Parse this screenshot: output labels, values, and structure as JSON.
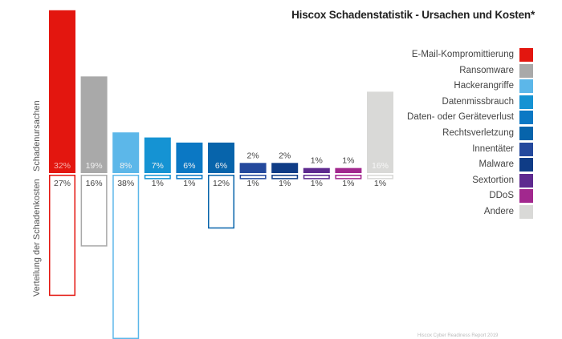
{
  "chart_data": {
    "type": "bar",
    "title": "Hiscox Schadenstatistik - Ursachen und Kosten*",
    "ylabel_top": "Schadenursachen",
    "ylabel_bottom": "Verteilung der Schadenkosten",
    "categories": [
      "E-Mail-Kompromittierung",
      "Ransomware",
      "Hackerangriffe",
      "Datenmissbrauch",
      "Daten- oder Geräteverlust",
      "Rechtsverletzung",
      "Innentäter",
      "Malware",
      "Sextortion",
      "DDoS",
      "Andere"
    ],
    "series": [
      {
        "name": "Schadenursachen",
        "values": [
          32,
          19,
          8,
          7,
          6,
          6,
          2,
          2,
          1,
          1,
          16
        ],
        "labels": [
          "32%",
          "19%",
          "8%",
          "7%",
          "6%",
          "6%",
          "2%",
          "2%",
          "1%",
          "1%",
          "16%"
        ]
      },
      {
        "name": "Verteilung der Schadenkosten",
        "values": [
          27,
          16,
          38,
          1,
          1,
          12,
          1,
          1,
          1,
          1,
          1
        ],
        "labels": [
          "27%",
          "16%",
          "38%",
          "1%",
          "1%",
          "12%",
          "1%",
          "1%",
          "1%",
          "1%",
          "1%"
        ]
      }
    ],
    "colors": [
      "#e3160f",
      "#a9a9a9",
      "#5cb7e9",
      "#1593d3",
      "#0b78c4",
      "#0764ab",
      "#24499d",
      "#0f3c86",
      "#5e2a8f",
      "#a2288e",
      "#d9d9d7"
    ]
  },
  "footer_note": "Hiscox Cyber Readiness Report 2019"
}
